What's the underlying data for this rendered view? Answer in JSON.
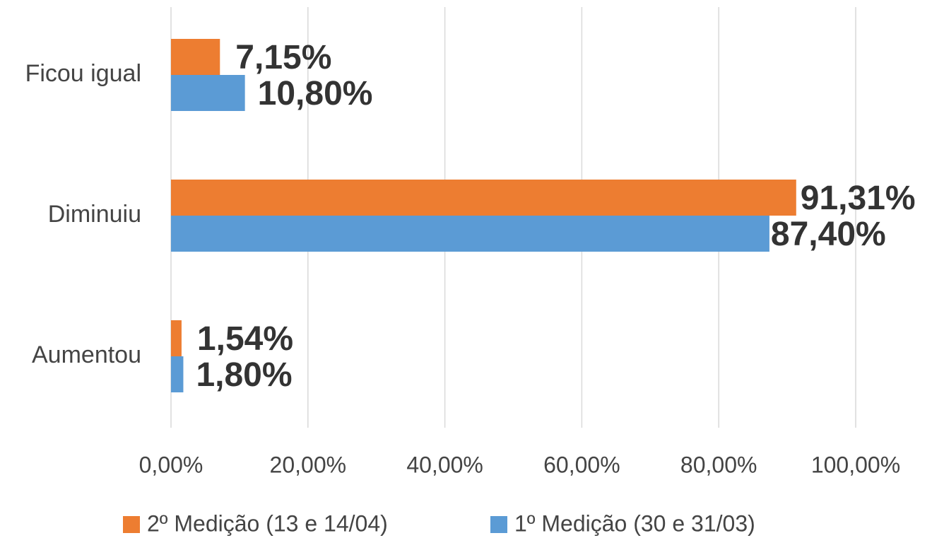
{
  "chart_data": {
    "type": "hbar",
    "categories": [
      "Ficou igual",
      "Diminuiu",
      "Aumentou"
    ],
    "series": [
      {
        "name": "2º Medição (13 e 14/04)",
        "color": "#ed7d31",
        "values": [
          7.15,
          91.31,
          1.54
        ],
        "value_labels": [
          "7,15%",
          "91,31%",
          "1,54%"
        ]
      },
      {
        "name": "1º Medição (30 e 31/03)",
        "color": "#5b9bd5",
        "values": [
          10.8,
          87.4,
          1.8
        ],
        "value_labels": [
          "10,80%",
          "87,40%",
          "1,80%"
        ]
      }
    ],
    "xlim": [
      0,
      100
    ],
    "xticks": [
      {
        "value": 0,
        "label": "0,00%"
      },
      {
        "value": 20,
        "label": "20,00%"
      },
      {
        "value": 40,
        "label": "40,00%"
      },
      {
        "value": 60,
        "label": "60,00%"
      },
      {
        "value": 80,
        "label": "80,00%"
      },
      {
        "value": 100,
        "label": "100,00%"
      }
    ],
    "grid": true,
    "legend": "bottom"
  }
}
